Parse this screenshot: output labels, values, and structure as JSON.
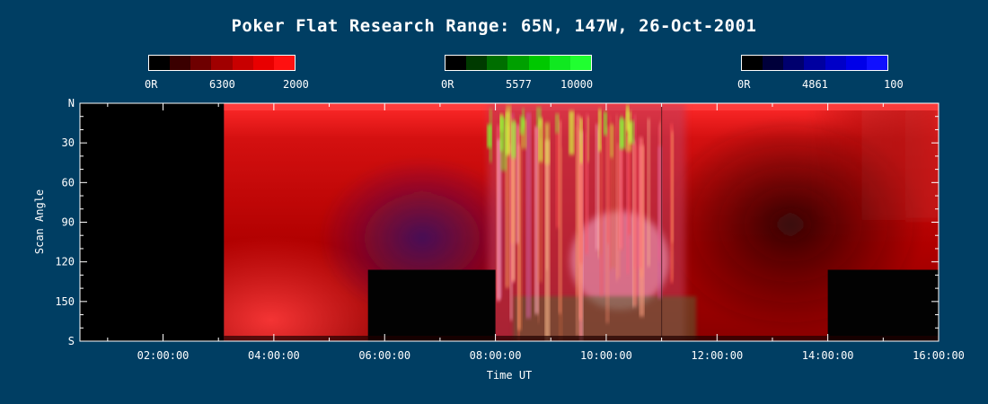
{
  "title": "Poker Flat Research Range: 65N, 147W, 26-Oct-2001",
  "colorbars": [
    {
      "name": "red-6300",
      "labels": [
        "0R",
        "6300",
        "2000"
      ],
      "colors": [
        "#000000",
        "#3a0000",
        "#6e0000",
        "#a00000",
        "#c80000",
        "#e80000",
        "#ff1010"
      ]
    },
    {
      "name": "green-5577",
      "labels": [
        "0R",
        "5577",
        "10000"
      ],
      "colors": [
        "#000000",
        "#003a00",
        "#006e00",
        "#00a000",
        "#00c800",
        "#10e820",
        "#20ff30"
      ]
    },
    {
      "name": "blue-4861",
      "labels": [
        "0R",
        "4861",
        "100"
      ],
      "colors": [
        "#000000",
        "#00003a",
        "#00006e",
        "#0000a0",
        "#0000c8",
        "#0000e8",
        "#1010ff"
      ]
    }
  ],
  "chart_data": {
    "type": "heatmap",
    "title": "Poker Flat Research Range: 65N, 147W, 26-Oct-2001",
    "xlabel": "Time UT",
    "ylabel": "Scan Angle",
    "x_ticks": [
      "02:00:00",
      "04:00:00",
      "06:00:00",
      "08:00:00",
      "10:00:00",
      "12:00:00",
      "14:00:00",
      "16:00:00"
    ],
    "x_tick_hours": [
      2,
      4,
      6,
      8,
      10,
      12,
      14,
      16
    ],
    "xlim_hours": [
      0.5,
      16.0
    ],
    "y_ticks": [
      "N",
      "30",
      "60",
      "90",
      "120",
      "150",
      "S"
    ],
    "y_tick_values": [
      0,
      30,
      60,
      90,
      120,
      150,
      180
    ],
    "ylim": [
      0,
      180
    ],
    "no_data_hours": [
      [
        0.5,
        3.1
      ]
    ],
    "gaps": [
      {
        "hours": [
          5.7,
          8.0
        ],
        "angles": [
          126,
          180
        ]
      },
      {
        "hours": [
          14.0,
          16.0
        ],
        "angles": [
          126,
          180
        ]
      }
    ],
    "active_hours": [
      8.0,
      11.3
    ]
  }
}
